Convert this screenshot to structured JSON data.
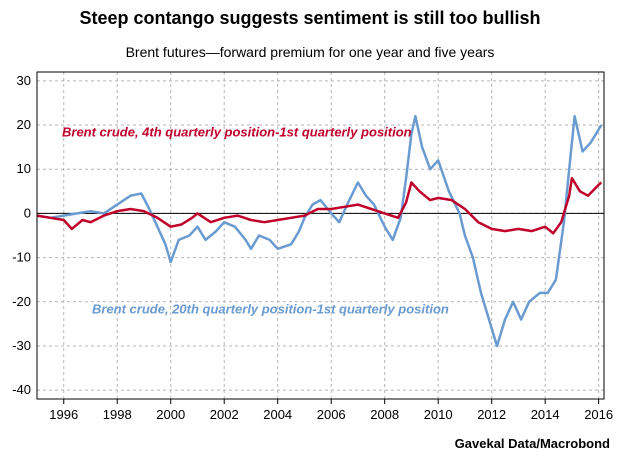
{
  "source": "Gavekal Data/Macrobond",
  "chart_data": {
    "type": "line",
    "title": "Steep contango suggests sentiment is still too bullish",
    "subtitle": "Brent futures—forward premium for one year and five years",
    "xlabel": "",
    "ylabel": "",
    "xlim": [
      1995.0,
      2016.2
    ],
    "ylim": [
      -42,
      32
    ],
    "x_ticks": [
      "1996",
      "1998",
      "2000",
      "2002",
      "2004",
      "2006",
      "2008",
      "2010",
      "2012",
      "2014",
      "2016"
    ],
    "y_ticks": [
      "30",
      "20",
      "10",
      "0",
      "-10",
      "-20",
      "-30",
      "-40"
    ],
    "grid": true,
    "colors": {
      "red": "#C0002A",
      "blue": "#6A9BD0"
    },
    "series": [
      {
        "name": "Brent crude, 4th quarterly position-1st quarterly position",
        "color": "#C0002A",
        "points": [
          [
            1995.0,
            -0.5
          ],
          [
            1995.5,
            -1.0
          ],
          [
            1996.0,
            -1.5
          ],
          [
            1996.3,
            -3.5
          ],
          [
            1996.7,
            -1.5
          ],
          [
            1997.0,
            -2.0
          ],
          [
            1997.5,
            -0.5
          ],
          [
            1998.0,
            0.5
          ],
          [
            1998.5,
            1.0
          ],
          [
            1999.0,
            0.5
          ],
          [
            1999.5,
            -1.0
          ],
          [
            2000.0,
            -3.0
          ],
          [
            2000.4,
            -2.5
          ],
          [
            2000.8,
            -1.0
          ],
          [
            2001.0,
            0.0
          ],
          [
            2001.5,
            -2.0
          ],
          [
            2002.0,
            -1.0
          ],
          [
            2002.5,
            -0.5
          ],
          [
            2003.0,
            -1.5
          ],
          [
            2003.5,
            -2.0
          ],
          [
            2004.0,
            -1.5
          ],
          [
            2004.5,
            -1.0
          ],
          [
            2005.0,
            -0.5
          ],
          [
            2005.5,
            1.0
          ],
          [
            2006.0,
            1.0
          ],
          [
            2006.5,
            1.5
          ],
          [
            2007.0,
            2.0
          ],
          [
            2007.5,
            1.0
          ],
          [
            2008.0,
            0.0
          ],
          [
            2008.5,
            -1.0
          ],
          [
            2008.8,
            2.5
          ],
          [
            2009.0,
            7.0
          ],
          [
            2009.3,
            5.0
          ],
          [
            2009.7,
            3.0
          ],
          [
            2010.0,
            3.5
          ],
          [
            2010.5,
            3.0
          ],
          [
            2011.0,
            1.0
          ],
          [
            2011.5,
            -2.0
          ],
          [
            2012.0,
            -3.5
          ],
          [
            2012.5,
            -4.0
          ],
          [
            2013.0,
            -3.5
          ],
          [
            2013.5,
            -4.0
          ],
          [
            2014.0,
            -3.0
          ],
          [
            2014.3,
            -4.5
          ],
          [
            2014.6,
            -2.0
          ],
          [
            2014.9,
            4.0
          ],
          [
            2015.0,
            8.0
          ],
          [
            2015.3,
            5.0
          ],
          [
            2015.6,
            4.0
          ],
          [
            2016.0,
            6.5
          ],
          [
            2016.1,
            7.0
          ]
        ]
      },
      {
        "name": "Brent crude, 20th quarterly position-1st quarterly position",
        "color": "#6A9BD0",
        "points": [
          [
            1995.0,
            -0.5
          ],
          [
            1995.5,
            -1.0
          ],
          [
            1996.0,
            -0.5
          ],
          [
            1996.5,
            0.0
          ],
          [
            1997.0,
            0.5
          ],
          [
            1997.5,
            0.0
          ],
          [
            1998.0,
            2.0
          ],
          [
            1998.5,
            4.0
          ],
          [
            1998.9,
            4.5
          ],
          [
            1999.2,
            1.0
          ],
          [
            1999.5,
            -3.0
          ],
          [
            1999.8,
            -7.0
          ],
          [
            2000.0,
            -11.0
          ],
          [
            2000.3,
            -6.0
          ],
          [
            2000.7,
            -5.0
          ],
          [
            2001.0,
            -3.0
          ],
          [
            2001.3,
            -6.0
          ],
          [
            2001.7,
            -4.0
          ],
          [
            2002.0,
            -2.0
          ],
          [
            2002.4,
            -3.0
          ],
          [
            2002.8,
            -6.0
          ],
          [
            2003.0,
            -8.0
          ],
          [
            2003.3,
            -5.0
          ],
          [
            2003.7,
            -6.0
          ],
          [
            2004.0,
            -8.0
          ],
          [
            2004.5,
            -7.0
          ],
          [
            2004.8,
            -4.0
          ],
          [
            2005.0,
            -1.0
          ],
          [
            2005.3,
            2.0
          ],
          [
            2005.6,
            3.0
          ],
          [
            2006.0,
            0.0
          ],
          [
            2006.3,
            -2.0
          ],
          [
            2006.6,
            2.0
          ],
          [
            2007.0,
            7.0
          ],
          [
            2007.3,
            4.0
          ],
          [
            2007.6,
            2.0
          ],
          [
            2008.0,
            -3.0
          ],
          [
            2008.3,
            -6.0
          ],
          [
            2008.6,
            -1.0
          ],
          [
            2008.8,
            8.0
          ],
          [
            2009.0,
            18.0
          ],
          [
            2009.15,
            22.0
          ],
          [
            2009.4,
            15.0
          ],
          [
            2009.7,
            10.0
          ],
          [
            2010.0,
            12.0
          ],
          [
            2010.4,
            5.0
          ],
          [
            2010.8,
            0.0
          ],
          [
            2011.0,
            -5.0
          ],
          [
            2011.3,
            -10.0
          ],
          [
            2011.6,
            -18.0
          ],
          [
            2011.9,
            -24.0
          ],
          [
            2012.2,
            -30.0
          ],
          [
            2012.5,
            -24.0
          ],
          [
            2012.8,
            -20.0
          ],
          [
            2013.1,
            -24.0
          ],
          [
            2013.4,
            -20.0
          ],
          [
            2013.8,
            -18.0
          ],
          [
            2014.1,
            -18.0
          ],
          [
            2014.4,
            -15.0
          ],
          [
            2014.7,
            -2.0
          ],
          [
            2014.9,
            10.0
          ],
          [
            2015.1,
            22.0
          ],
          [
            2015.4,
            14.0
          ],
          [
            2015.7,
            16.0
          ],
          [
            2015.9,
            18.0
          ],
          [
            2016.1,
            20.0
          ]
        ]
      }
    ],
    "annotations": [
      {
        "text": "Brent crude, 4th quarterly position-1st quarterly position",
        "color": "#C0002A"
      },
      {
        "text": "Brent crude, 20th quarterly position-1st quarterly position",
        "color": "#6A9BD0"
      }
    ]
  }
}
